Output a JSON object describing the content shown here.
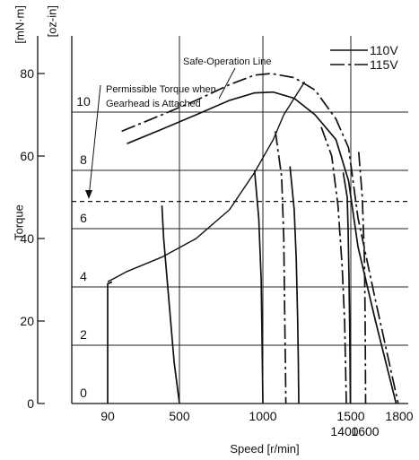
{
  "chart_data": {
    "type": "line",
    "xlabel": "Speed [r/min]",
    "ylabel": "Torque",
    "units": {
      "left": "[mN·m]",
      "right": "[oz-in]"
    },
    "x_ticks": [
      "90",
      "500",
      "1000",
      "1400",
      "1500",
      "1600",
      "1800"
    ],
    "y_ticks_mNm": [
      "0",
      "20",
      "40",
      "60",
      "80"
    ],
    "y_ticks_ozin": [
      "0",
      "2",
      "4",
      "6",
      "8",
      "10"
    ],
    "xlim": [
      0,
      1800
    ],
    "ylim_mNm": [
      0,
      88
    ],
    "grid": true,
    "legend": {
      "position": "top-right",
      "entries": [
        {
          "name": "110V",
          "dash": "solid"
        },
        {
          "name": "115V",
          "dash": "dash-dot"
        }
      ]
    },
    "annotations": {
      "safe_line": "Safe-Operation Line",
      "permissible": [
        "Permissible Torque when",
        "Gearhead is Attached"
      ]
    },
    "permissible_torque_mNm": 49,
    "series": [
      {
        "name": "110V",
        "curves": [
          {
            "points": [
              [
                200,
                63
              ],
              [
                400,
                66.5
              ],
              [
                600,
                70
              ],
              [
                800,
                73.5
              ],
              [
                950,
                75.3
              ],
              [
                1050,
                75.5
              ],
              [
                1150,
                74
              ],
              [
                1250,
                70
              ],
              [
                1350,
                64
              ],
              [
                1450,
                54
              ],
              [
                1550,
                38
              ],
              [
                1650,
                20
              ],
              [
                1750,
                0
              ]
            ]
          },
          {
            "points": [
              [
                90,
                0
              ],
              [
                90,
                29
              ],
              [
                115,
                29.5
              ]
            ]
          },
          {
            "points": [
              [
                400,
                48
              ],
              [
                410,
                40
              ],
              [
                430,
                30
              ],
              [
                450,
                20
              ],
              [
                470,
                10
              ],
              [
                500,
                0
              ]
            ]
          },
          {
            "points": [
              [
                950,
                56.5
              ],
              [
                975,
                45
              ],
              [
                990,
                30
              ],
              [
                995,
                15
              ],
              [
                1000,
                0
              ]
            ]
          },
          {
            "points": [
              [
                1130,
                57.5
              ],
              [
                1150,
                47
              ],
              [
                1160,
                35
              ],
              [
                1167,
                20
              ],
              [
                1170,
                10
              ],
              [
                1172,
                0
              ]
            ]
          },
          {
            "points": [
              [
                1385,
                56
              ],
              [
                1420,
                50
              ],
              [
                1440,
                42
              ],
              [
                1460,
                30
              ],
              [
                1475,
                18
              ],
              [
                1490,
                0
              ]
            ]
          }
        ]
      },
      {
        "name": "115V",
        "curves": [
          {
            "points": [
              [
                170,
                66
              ],
              [
                400,
                70
              ],
              [
                600,
                73.5
              ],
              [
                800,
                77.3
              ],
              [
                950,
                79.6
              ],
              [
                1040,
                80
              ],
              [
                1150,
                79
              ],
              [
                1250,
                76
              ],
              [
                1350,
                69
              ],
              [
                1450,
                62
              ],
              [
                1550,
                45
              ],
              [
                1650,
                25
              ],
              [
                1760,
                0
              ]
            ]
          },
          {
            "points": [
              [
                1060,
                66
              ],
              [
                1090,
                55
              ],
              [
                1100,
                40
              ],
              [
                1105,
                20
              ],
              [
                1108,
                10
              ],
              [
                1110,
                0
              ]
            ]
          },
          {
            "points": [
              [
                1280,
                67
              ],
              [
                1330,
                60
              ],
              [
                1360,
                48
              ],
              [
                1380,
                33
              ],
              [
                1392,
                20
              ],
              [
                1400,
                0
              ]
            ]
          },
          {
            "points": [
              [
                1555,
                61
              ],
              [
                1580,
                50
              ],
              [
                1595,
                35
              ],
              [
                1600,
                20
              ],
              [
                1602,
                0
              ]
            ]
          }
        ]
      }
    ],
    "safe_operation_line": [
      [
        90,
        29.5
      ],
      [
        200,
        32
      ],
      [
        400,
        35.5
      ],
      [
        600,
        40
      ],
      [
        800,
        47
      ],
      [
        950,
        56
      ],
      [
        1050,
        64
      ],
      [
        1100,
        70
      ],
      [
        1150,
        74
      ],
      [
        1200,
        78
      ]
    ]
  }
}
